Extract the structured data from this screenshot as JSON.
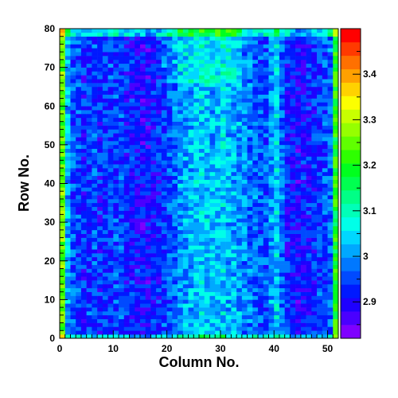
{
  "chart_data": {
    "type": "heatmap",
    "title": "",
    "xlabel": "Column No.",
    "ylabel": "Row No.",
    "xlim": [
      0,
      52
    ],
    "ylim": [
      0,
      80
    ],
    "x_ticks": [
      0,
      10,
      20,
      30,
      40,
      50
    ],
    "y_ticks": [
      0,
      10,
      20,
      30,
      40,
      50,
      60,
      70,
      80
    ],
    "n_columns": 52,
    "n_rows": 80,
    "colorbar": {
      "range": [
        2.82,
        3.5
      ],
      "tick_values": [
        2.9,
        3.0,
        3.1,
        3.2,
        3.3,
        3.4
      ],
      "tick_labels": [
        "2.9",
        "3",
        "3.1",
        "3.2",
        "3.3",
        "3.4"
      ],
      "colors": [
        "#7f00ff",
        "#4a00ff",
        "#1e00ff",
        "#0019ff",
        "#004aff",
        "#0078ff",
        "#00a8ff",
        "#00d7ff",
        "#00ffe8",
        "#00ffb8",
        "#00ff86",
        "#00ff50",
        "#00ff1e",
        "#2eff00",
        "#60ff00",
        "#96ff00",
        "#c8ff00",
        "#fcff00",
        "#ffd200",
        "#ffa000",
        "#ff7000",
        "#ff3a00",
        "#ff0000"
      ]
    },
    "column_profile": [
      3.25,
      3.02,
      2.96,
      2.95,
      2.93,
      2.94,
      2.95,
      2.93,
      2.94,
      2.94,
      2.95,
      2.95,
      2.93,
      2.92,
      2.91,
      2.9,
      2.9,
      2.91,
      2.92,
      2.94,
      2.95,
      2.97,
      3.0,
      3.01,
      3.02,
      3.03,
      3.04,
      3.03,
      3.02,
      3.03,
      3.04,
      3.02,
      3.01,
      3.0,
      2.99,
      2.98,
      2.97,
      2.96,
      2.96,
      3.0,
      3.04,
      2.97,
      2.92,
      2.91,
      2.9,
      2.91,
      2.92,
      2.93,
      2.94,
      2.95,
      2.97,
      3.2
    ],
    "row_profile_note": "",
    "top_row_offset": 0.12,
    "noise_amplitude": 0.06
  }
}
